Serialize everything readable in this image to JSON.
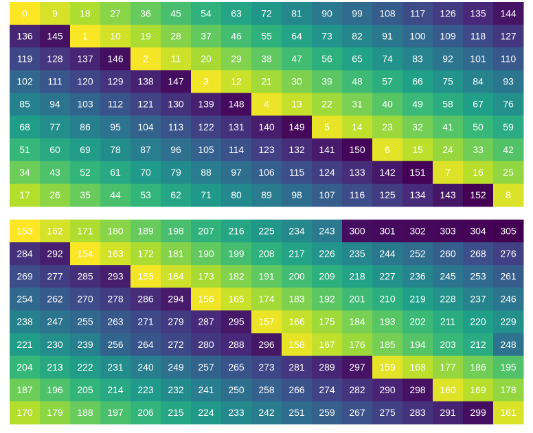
{
  "colormap": "viridis_r",
  "grids": [
    {
      "rows": [
        [
          0,
          9,
          18,
          27,
          36,
          45,
          54,
          63,
          72,
          81,
          90,
          99,
          108,
          117,
          126,
          135,
          144
        ],
        [
          136,
          145,
          1,
          10,
          19,
          28,
          37,
          46,
          55,
          64,
          73,
          82,
          91,
          100,
          109,
          118,
          127
        ],
        [
          119,
          128,
          137,
          146,
          2,
          11,
          20,
          29,
          38,
          47,
          56,
          65,
          74,
          83,
          92,
          101,
          110
        ],
        [
          102,
          111,
          120,
          129,
          138,
          147,
          3,
          12,
          21,
          30,
          39,
          48,
          57,
          66,
          75,
          84,
          93
        ],
        [
          85,
          94,
          103,
          112,
          121,
          130,
          139,
          148,
          4,
          13,
          22,
          31,
          40,
          49,
          58,
          67,
          76
        ],
        [
          68,
          77,
          86,
          95,
          104,
          113,
          122,
          131,
          140,
          149,
          5,
          14,
          23,
          32,
          41,
          50,
          59
        ],
        [
          51,
          60,
          69,
          78,
          87,
          96,
          105,
          114,
          123,
          132,
          141,
          150,
          6,
          15,
          24,
          33,
          42
        ],
        [
          34,
          43,
          52,
          61,
          70,
          79,
          88,
          97,
          106,
          115,
          124,
          133,
          142,
          151,
          7,
          16,
          25
        ],
        [
          17,
          26,
          35,
          44,
          53,
          62,
          71,
          80,
          89,
          98,
          107,
          116,
          125,
          134,
          143,
          152,
          8
        ]
      ]
    },
    {
      "rows": [
        [
          153,
          162,
          171,
          180,
          189,
          198,
          207,
          216,
          225,
          234,
          243,
          300,
          301,
          302,
          303,
          304,
          305
        ],
        [
          284,
          292,
          154,
          163,
          172,
          181,
          190,
          199,
          208,
          217,
          226,
          235,
          244,
          252,
          260,
          268,
          276
        ],
        [
          269,
          277,
          285,
          293,
          155,
          164,
          173,
          182,
          191,
          200,
          209,
          218,
          227,
          236,
          245,
          253,
          261
        ],
        [
          254,
          262,
          270,
          278,
          286,
          294,
          156,
          165,
          174,
          183,
          192,
          201,
          210,
          219,
          228,
          237,
          246
        ],
        [
          238,
          247,
          255,
          263,
          271,
          279,
          287,
          295,
          157,
          166,
          175,
          184,
          193,
          202,
          211,
          220,
          229
        ],
        [
          221,
          230,
          239,
          256,
          264,
          272,
          280,
          288,
          296,
          158,
          167,
          176,
          185,
          194,
          203,
          212,
          248
        ],
        [
          204,
          213,
          222,
          231,
          240,
          249,
          257,
          265,
          273,
          281,
          289,
          297,
          159,
          168,
          177,
          186,
          195
        ],
        [
          187,
          196,
          205,
          214,
          223,
          232,
          241,
          250,
          258,
          266,
          274,
          282,
          290,
          298,
          160,
          169,
          178
        ],
        [
          170,
          179,
          188,
          197,
          206,
          215,
          224,
          233,
          242,
          251,
          259,
          267,
          275,
          283,
          291,
          299,
          161
        ]
      ]
    }
  ]
}
